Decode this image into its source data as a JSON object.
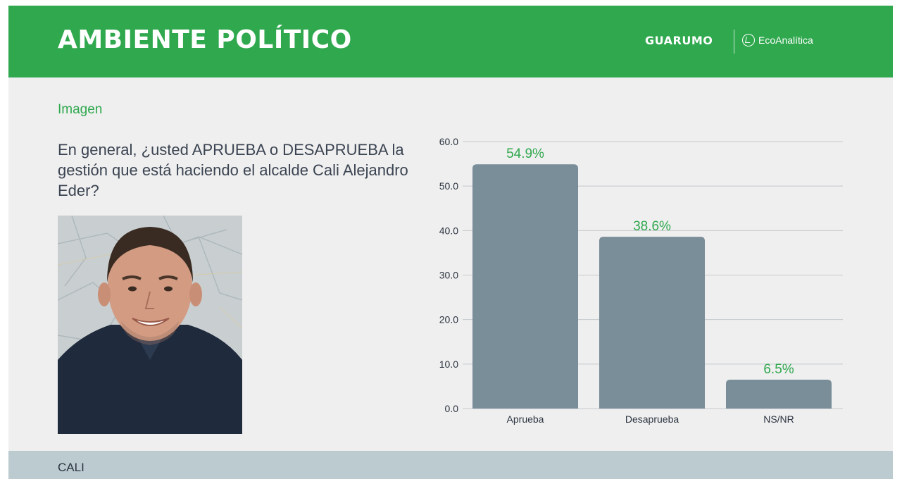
{
  "header": {
    "title": "AMBIENTE POLÍTICO",
    "brand_primary": "GUARUMO",
    "brand_secondary": "EcoAnalítica",
    "color": "#2fa84e"
  },
  "section": {
    "label": "Imagen",
    "question": "En general, ¿usted APRUEBA o DESAPRUEBA la gestión que está haciendo el alcalde Cali Alejandro Eder?"
  },
  "photo": {
    "icon": "portrait-photo"
  },
  "footer": {
    "label": "CALI"
  },
  "chart_data": {
    "type": "bar",
    "title": "",
    "xlabel": "",
    "ylabel": "",
    "categories": [
      "Aprueba",
      "Desaprueba",
      "NS/NR"
    ],
    "values": [
      54.9,
      38.6,
      6.5
    ],
    "data_labels": [
      "54.9%",
      "38.6%",
      "6.5%"
    ],
    "ylim": [
      0,
      60
    ],
    "yticks": [
      "0.0",
      "10.0",
      "20.0",
      "30.0",
      "40.0",
      "50.0",
      "60.0"
    ],
    "grid": true,
    "bar_color": "#7a8e99",
    "label_color": "#2fa84e"
  }
}
